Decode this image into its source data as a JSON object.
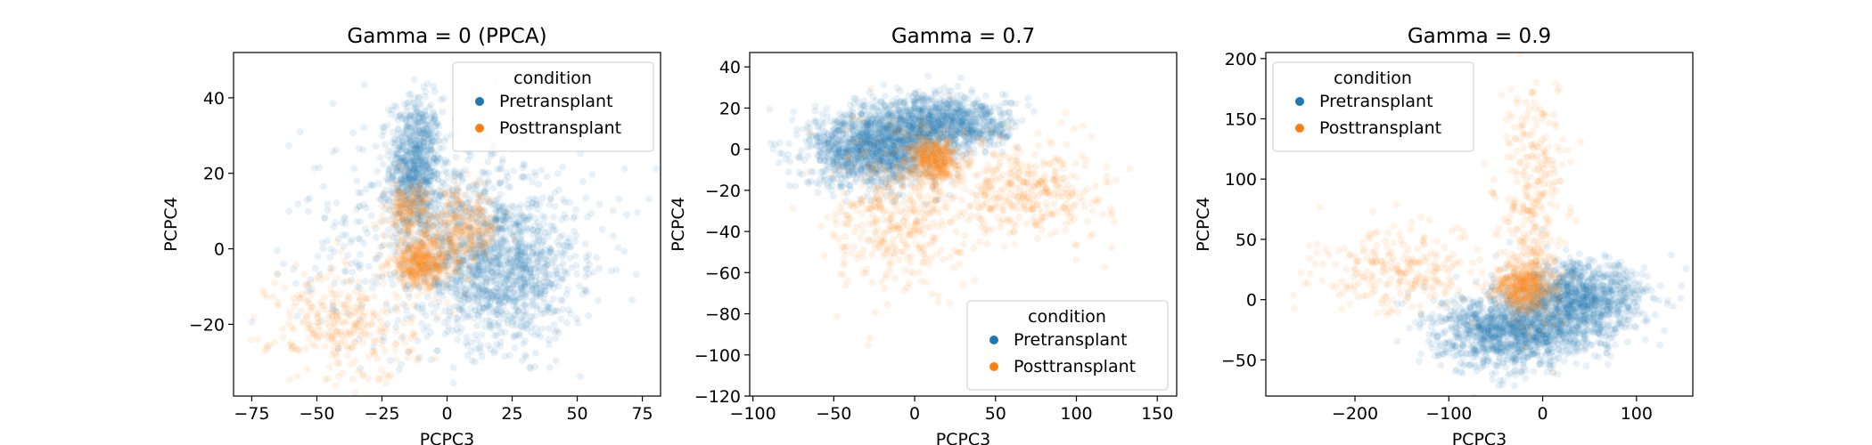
{
  "colors": {
    "pretransplant": "#1f77b4",
    "posttransplant": "#ff7f0e"
  },
  "chart_data": [
    {
      "type": "scatter",
      "title": "Gamma = 0 (PPCA)",
      "xlabel": "PCPC3",
      "ylabel": "PCPC4",
      "xlim": [
        -82,
        82
      ],
      "ylim": [
        -39,
        52
      ],
      "xticks": [
        -75,
        -50,
        -25,
        0,
        25,
        50,
        75
      ],
      "yticks": [
        -20,
        0,
        20,
        40
      ],
      "legend": {
        "title": "condition",
        "location": "upper right",
        "entries": [
          "Pretransplant",
          "Posttransplant"
        ]
      },
      "series": [
        {
          "name": "Pretransplant",
          "point_count": 2500,
          "clusters": [
            {
              "center": [
                -12,
                22
              ],
              "spread": [
                5,
                9
              ],
              "weight": 0.3
            },
            {
              "center": [
                20,
                -5
              ],
              "spread": [
                15,
                10
              ],
              "weight": 0.45
            },
            {
              "center": [
                0,
                5
              ],
              "spread": [
                28,
                14
              ],
              "weight": 0.25
            }
          ]
        },
        {
          "name": "Posttransplant",
          "point_count": 1200,
          "clusters": [
            {
              "center": [
                -10,
                -4
              ],
              "spread": [
                6,
                3
              ],
              "weight": 0.35
            },
            {
              "center": [
                5,
                5
              ],
              "spread": [
                8,
                5
              ],
              "weight": 0.25
            },
            {
              "center": [
                -15,
                10
              ],
              "spread": [
                4,
                4
              ],
              "weight": 0.15
            },
            {
              "center": [
                -40,
                -20
              ],
              "spread": [
                14,
                8
              ],
              "weight": 0.25
            }
          ]
        }
      ]
    },
    {
      "type": "scatter",
      "title": "Gamma = 0.7",
      "xlabel": "PCPC3",
      "ylabel": "PCPC4",
      "xlim": [
        -102,
        162
      ],
      "ylim": [
        -120,
        47
      ],
      "xticks": [
        -100,
        -50,
        0,
        50,
        100,
        150
      ],
      "yticks": [
        -120,
        -100,
        -80,
        -60,
        -40,
        -20,
        0,
        20,
        40
      ],
      "legend": {
        "title": "condition",
        "location": "lower right",
        "entries": [
          "Pretransplant",
          "Posttransplant"
        ]
      },
      "series": [
        {
          "name": "Pretransplant",
          "point_count": 2500,
          "clusters": [
            {
              "center": [
                -25,
                0
              ],
              "spread": [
                20,
                9
              ],
              "weight": 0.55
            },
            {
              "center": [
                5,
                12
              ],
              "spread": [
                18,
                8
              ],
              "weight": 0.3
            },
            {
              "center": [
                35,
                12
              ],
              "spread": [
                15,
                6
              ],
              "weight": 0.15
            }
          ]
        },
        {
          "name": "Posttransplant",
          "point_count": 1200,
          "clusters": [
            {
              "center": [
                12,
                -5
              ],
              "spread": [
                7,
                5
              ],
              "weight": 0.35
            },
            {
              "center": [
                -10,
                -30
              ],
              "spread": [
                20,
                20
              ],
              "weight": 0.35
            },
            {
              "center": [
                70,
                -20
              ],
              "spread": [
                25,
                12
              ],
              "weight": 0.3
            }
          ]
        }
      ]
    },
    {
      "type": "scatter",
      "title": "Gamma = 0.9",
      "xlabel": "PCPC3",
      "ylabel": "PCPC4",
      "xlim": [
        -295,
        160
      ],
      "ylim": [
        -80,
        205
      ],
      "xticks": [
        -200,
        -100,
        0,
        100
      ],
      "yticks": [
        -50,
        0,
        50,
        100,
        150,
        200
      ],
      "legend": {
        "title": "condition",
        "location": "upper left",
        "entries": [
          "Pretransplant",
          "Posttransplant"
        ]
      },
      "series": [
        {
          "name": "Pretransplant",
          "point_count": 2500,
          "clusters": [
            {
              "center": [
                40,
                0
              ],
              "spread": [
                35,
                15
              ],
              "weight": 0.45
            },
            {
              "center": [
                -30,
                -25
              ],
              "spread": [
                40,
                15
              ],
              "weight": 0.55
            }
          ]
        },
        {
          "name": "Posttransplant",
          "point_count": 1000,
          "clusters": [
            {
              "center": [
                -20,
                10
              ],
              "spread": [
                15,
                10
              ],
              "weight": 0.45
            },
            {
              "center": [
                -150,
                25
              ],
              "spread": [
                45,
                18
              ],
              "weight": 0.25
            },
            {
              "center": [
                -10,
                80
              ],
              "spread": [
                18,
                45
              ],
              "weight": 0.3
            }
          ]
        }
      ]
    }
  ]
}
